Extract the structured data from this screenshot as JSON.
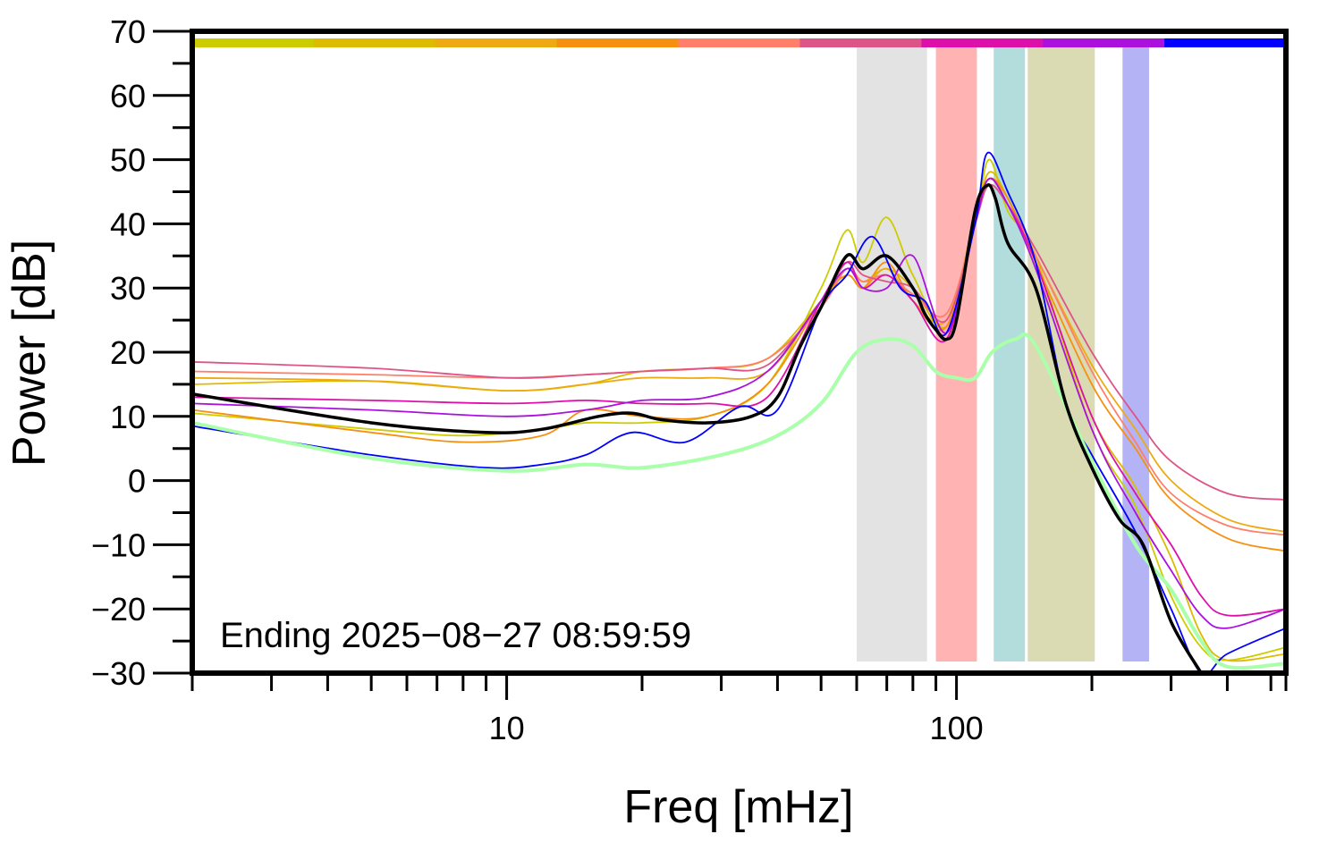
{
  "chart_data": {
    "type": "line",
    "title": "",
    "xlabel": "Freq [mHz]",
    "ylabel": "Power [dB]",
    "xscale": "log",
    "xlim": [
      2,
      540
    ],
    "ylim": [
      -30,
      70
    ],
    "x_ticks": [
      10,
      100
    ],
    "x_tick_labels": [
      "10",
      "100"
    ],
    "y_ticks": [
      -30,
      -20,
      -10,
      0,
      10,
      20,
      30,
      40,
      50,
      60,
      70
    ],
    "y_tick_labels": [
      "−30",
      "−20",
      "−10",
      "0",
      "10",
      "20",
      "30",
      "40",
      "50",
      "60",
      "70"
    ],
    "grid": false,
    "legend": "none",
    "annotation": "Ending 2025−08−27 08:59:59",
    "bands": [
      {
        "x0": 60,
        "x1": 86,
        "color": "#e3e3e3"
      },
      {
        "x0": 90,
        "x1": 111,
        "color": "#ffb3b3"
      },
      {
        "x0": 121,
        "x1": 142,
        "color": "#b3dcdc"
      },
      {
        "x0": 144,
        "x1": 203,
        "color": "#dadab3"
      },
      {
        "x0": 234,
        "x1": 268,
        "color": "#b3b3f5"
      }
    ],
    "top_bar_colors": [
      "#cccc00",
      "#ddbb00",
      "#eeaa11",
      "#f59011",
      "#ff7f6a",
      "#dd5588",
      "#dd11aa",
      "#aa11dd",
      "#0000ff"
    ],
    "series": [
      {
        "color": "#cccc00",
        "width": 1.8,
        "x": [
          2,
          5,
          8,
          12,
          15,
          20,
          28,
          38,
          50,
          57,
          62,
          70,
          80,
          95,
          110,
          118,
          130,
          150,
          200,
          250,
          300,
          350,
          400,
          540
        ],
        "y": [
          10.5,
          8,
          7,
          8,
          9,
          9,
          10,
          15,
          30,
          39,
          34,
          41,
          32,
          24,
          40,
          50,
          42,
          35,
          8,
          -4,
          -18,
          -26,
          -28,
          -26
        ]
      },
      {
        "color": "#ddbb00",
        "width": 1.8,
        "x": [
          2,
          5,
          10,
          15,
          20,
          28,
          38,
          50,
          57,
          62,
          70,
          80,
          95,
          110,
          118,
          130,
          150,
          200,
          250,
          300,
          350,
          400,
          540
        ],
        "y": [
          15,
          15.5,
          14,
          15,
          17,
          17.5,
          19,
          28,
          33,
          31,
          33,
          30,
          24,
          40,
          48,
          44,
          34,
          10,
          -1,
          -12,
          -24,
          -28,
          -27
        ]
      },
      {
        "color": "#eeaa11",
        "width": 1.8,
        "x": [
          2,
          5,
          10,
          15,
          20,
          28,
          38,
          50,
          57,
          62,
          70,
          80,
          95,
          110,
          118,
          130,
          150,
          200,
          250,
          300,
          400,
          540
        ],
        "y": [
          16,
          15.5,
          14,
          15,
          16,
          16,
          17,
          28,
          32,
          30,
          33,
          28,
          25,
          41,
          47,
          44,
          35,
          18,
          8,
          0,
          -6,
          -8
        ]
      },
      {
        "color": "#f59011",
        "width": 1.8,
        "x": [
          2,
          5,
          8,
          12,
          15,
          20,
          28,
          38,
          50,
          57,
          62,
          70,
          80,
          95,
          110,
          118,
          130,
          150,
          200,
          250,
          300,
          400,
          540
        ],
        "y": [
          11,
          7.5,
          6,
          7,
          11,
          10,
          10,
          15,
          28,
          32,
          30,
          34,
          28,
          24,
          41,
          47,
          44,
          34,
          15,
          5,
          -3,
          -9,
          -11
        ]
      },
      {
        "color": "#ff7f6a",
        "width": 1.8,
        "x": [
          2,
          5,
          10,
          15,
          20,
          28,
          38,
          50,
          57,
          62,
          70,
          80,
          95,
          110,
          118,
          130,
          150,
          200,
          250,
          300,
          400,
          540
        ],
        "y": [
          17,
          16.5,
          16,
          16.5,
          17,
          17.5,
          19,
          27,
          33,
          31,
          32,
          29,
          26,
          40,
          46,
          43,
          35,
          17,
          6,
          -2,
          -7,
          -8.5
        ]
      },
      {
        "color": "#dd5588",
        "width": 1.8,
        "x": [
          2,
          5,
          10,
          15,
          20,
          28,
          38,
          50,
          57,
          62,
          70,
          80,
          95,
          110,
          118,
          130,
          150,
          200,
          250,
          300,
          400,
          540
        ],
        "y": [
          18.5,
          17.5,
          16,
          16.5,
          17,
          17.5,
          18,
          28,
          34,
          32,
          31,
          30,
          25,
          40,
          46,
          43,
          36,
          20,
          10,
          3,
          -2,
          -3
        ]
      },
      {
        "color": "#dd11aa",
        "width": 1.8,
        "x": [
          2,
          5,
          10,
          15,
          20,
          28,
          38,
          50,
          57,
          62,
          70,
          80,
          95,
          110,
          118,
          130,
          150,
          200,
          250,
          300,
          350,
          400,
          540
        ],
        "y": [
          13,
          12.5,
          12,
          12.5,
          12,
          12,
          13,
          28,
          34,
          30,
          32,
          28,
          22,
          40,
          47,
          43,
          34,
          10,
          -2,
          -10,
          -18,
          -21,
          -20
        ]
      },
      {
        "color": "#aa11dd",
        "width": 1.8,
        "x": [
          2,
          5,
          10,
          15,
          20,
          28,
          38,
          50,
          57,
          62,
          70,
          80,
          95,
          110,
          118,
          130,
          150,
          200,
          250,
          300,
          350,
          400,
          540
        ],
        "y": [
          12,
          11,
          10,
          11,
          12.5,
          13,
          17,
          28,
          33,
          30,
          30,
          35,
          23,
          40,
          47,
          43,
          33,
          8,
          -5,
          -14,
          -21,
          -23,
          -20
        ]
      },
      {
        "color": "#0000ff",
        "width": 1.8,
        "x": [
          2,
          5,
          9,
          12,
          15,
          19,
          25,
          33,
          40,
          50,
          57,
          65,
          75,
          85,
          95,
          110,
          117,
          130,
          150,
          175,
          200,
          250,
          300,
          350,
          400,
          540
        ],
        "y": [
          8.5,
          4,
          2,
          2.5,
          4,
          7.5,
          6,
          11.5,
          11,
          27,
          32,
          38,
          30,
          28,
          23,
          40,
          51,
          45,
          34,
          12,
          4,
          -8,
          -20,
          -30,
          -27,
          -23
        ]
      },
      {
        "color": "#aaffaa",
        "width": 4,
        "x": [
          2,
          5,
          10,
          15,
          20,
          30,
          40,
          50,
          60,
          70,
          80,
          90,
          100,
          110,
          120,
          135,
          150,
          200,
          250,
          300,
          350,
          400,
          540
        ],
        "y": [
          9,
          3.5,
          1.5,
          2.5,
          2,
          4,
          7,
          12,
          20,
          22,
          21,
          17,
          16,
          16,
          20,
          22,
          21,
          3,
          -10,
          -17,
          -25,
          -29,
          -28.5
        ]
      },
      {
        "color": "#000000",
        "width": 3.5,
        "x": [
          2,
          5,
          9,
          12,
          16,
          19,
          22,
          28,
          35,
          40,
          45,
          50,
          57,
          62,
          70,
          80,
          85,
          90,
          95,
          100,
          110,
          117,
          122,
          130,
          150,
          175,
          200,
          230,
          260,
          300,
          350
        ],
        "y": [
          13.5,
          9,
          7.5,
          8,
          10,
          10.5,
          9.5,
          9,
          10,
          13,
          21,
          27,
          35,
          33,
          35,
          30,
          26,
          23.5,
          22,
          25,
          42,
          46,
          44,
          37,
          30,
          12,
          2,
          -6,
          -10,
          -22,
          -30
        ]
      }
    ]
  }
}
